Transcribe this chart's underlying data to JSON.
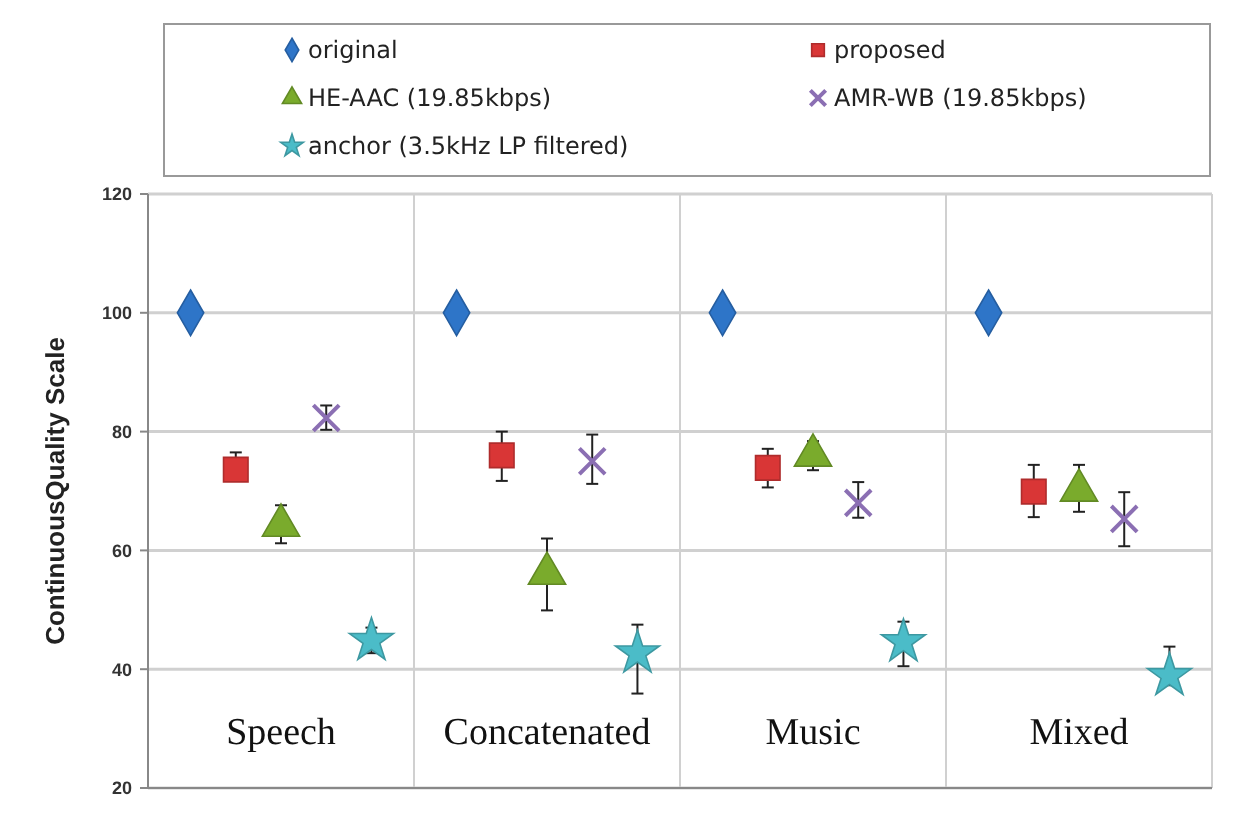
{
  "chart_data": {
    "type": "scatter",
    "ylabel": "ContinuousQuality Scale",
    "categories": [
      "Speech",
      "Concatenated",
      "Music",
      "Mixed"
    ],
    "ylim": [
      20,
      120
    ],
    "yticks": [
      20,
      40,
      60,
      80,
      100,
      120
    ],
    "grid": true,
    "legend": "top",
    "series": [
      {
        "name": "original",
        "color": "#2e75c8",
        "marker": "diamond",
        "values": [
          100,
          100,
          100,
          100
        ]
      },
      {
        "name": "proposed",
        "color": "#d93636",
        "marker": "square",
        "values": [
          73.6,
          76,
          73.9,
          69.9
        ],
        "errors": [
          [
            71.7,
            76.5
          ],
          [
            71.7,
            80
          ],
          [
            70.6,
            77.1
          ],
          [
            65.6,
            74.4
          ]
        ]
      },
      {
        "name": "HE-AAC (19.85kbps)",
        "color": "#7aab2c",
        "marker": "triangle",
        "values": [
          64.2,
          56.1,
          76,
          70.1
        ],
        "errors": [
          [
            61.2,
            67.6
          ],
          [
            49.9,
            62
          ],
          [
            73.5,
            78.4
          ],
          [
            66.5,
            74.4
          ]
        ]
      },
      {
        "name": "AMR-WB (19.85kbps)",
        "color": "#8b6fb3",
        "marker": "cross",
        "values": [
          82.3,
          75,
          68,
          65.3
        ],
        "errors": [
          [
            80.3,
            84.4
          ],
          [
            71.2,
            79.5
          ],
          [
            65.5,
            71.5
          ],
          [
            60.7,
            69.8
          ]
        ]
      },
      {
        "name": "anchor (3.5kHz LP filtered)",
        "color": "#4bbcc8",
        "marker": "star",
        "values": [
          44.8,
          42.7,
          44.6,
          38.9
        ],
        "errors": [
          [
            42.7,
            47
          ],
          [
            35.9,
            47.5
          ],
          [
            40.5,
            48
          ],
          [
            37.3,
            43.8
          ]
        ]
      }
    ]
  }
}
